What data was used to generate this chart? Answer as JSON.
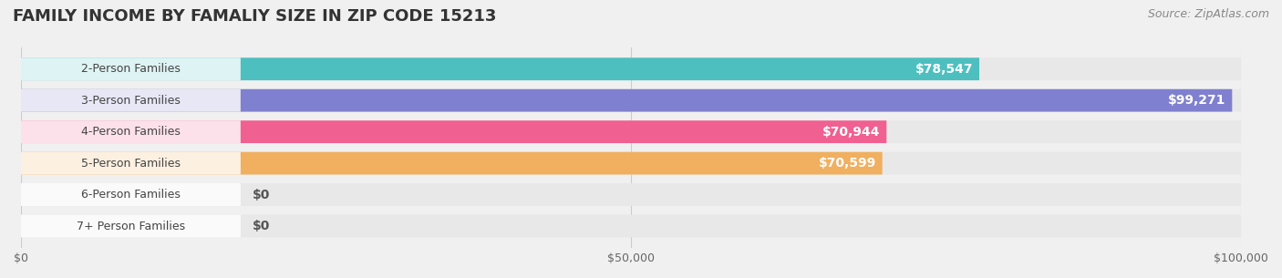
{
  "title": "FAMILY INCOME BY FAMALIY SIZE IN ZIP CODE 15213",
  "source": "Source: ZipAtlas.com",
  "categories": [
    "2-Person Families",
    "3-Person Families",
    "4-Person Families",
    "5-Person Families",
    "6-Person Families",
    "7+ Person Families"
  ],
  "values": [
    78547,
    99271,
    70944,
    70599,
    0,
    0
  ],
  "bar_colors": [
    "#4DBFBF",
    "#8080D0",
    "#F06090",
    "#F0B060",
    "#F09090",
    "#90B8E0"
  ],
  "label_colors": [
    "white",
    "white",
    "white",
    "white",
    "#555555",
    "#555555"
  ],
  "xlim": [
    0,
    100000
  ],
  "xticks": [
    0,
    50000,
    100000
  ],
  "xtick_labels": [
    "$0",
    "$50,000",
    "$100,000"
  ],
  "bg_color": "#f0f0f0",
  "bar_bg_color": "#e8e8e8",
  "title_fontsize": 13,
  "source_fontsize": 9,
  "label_fontsize": 10,
  "category_fontsize": 9
}
